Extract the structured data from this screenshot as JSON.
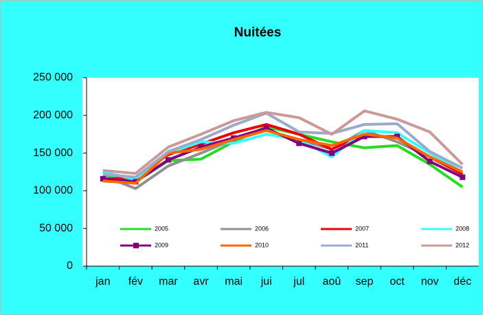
{
  "chart_data": {
    "type": "line",
    "title": "Nuitées",
    "categories": [
      "jan",
      "fév",
      "mar",
      "avr",
      "mai",
      "jui",
      "jul",
      "aoû",
      "sep",
      "oct",
      "nov",
      "déc"
    ],
    "ylim": [
      0,
      250000
    ],
    "yticks": [
      {
        "value": 0,
        "label": "0"
      },
      {
        "value": 50000,
        "label": "50 000"
      },
      {
        "value": 100000,
        "label": "100 000"
      },
      {
        "value": 150000,
        "label": "150 000"
      },
      {
        "value": 200000,
        "label": "200 000"
      },
      {
        "value": 250000,
        "label": "250 000"
      }
    ],
    "grid": true,
    "legend": "bottom",
    "series": [
      {
        "name": "2005",
        "color": "#22dd22",
        "values": [
          120000,
          112000,
          140000,
          142000,
          165000,
          185000,
          175000,
          165000,
          157000,
          160000,
          135000,
          105000
        ]
      },
      {
        "name": "2006",
        "color": "#909090",
        "values": [
          120000,
          103000,
          133000,
          150000,
          168000,
          180000,
          168000,
          155000,
          180000,
          165000,
          145000,
          122000
        ]
      },
      {
        "name": "2007",
        "color": "#ee0000",
        "values": [
          115000,
          118000,
          148000,
          162000,
          177000,
          188000,
          175000,
          155000,
          175000,
          170000,
          145000,
          122000
        ]
      },
      {
        "name": "2008",
        "color": "#33ffff",
        "values": [
          125000,
          115000,
          150000,
          165000,
          163000,
          175000,
          168000,
          145000,
          180000,
          177000,
          150000,
          125000
        ]
      },
      {
        "name": "2009",
        "color": "#800080",
        "marker": "square",
        "values": [
          116000,
          112000,
          141000,
          158000,
          170000,
          183000,
          163000,
          150000,
          172000,
          172000,
          139000,
          118000
        ]
      },
      {
        "name": "2010",
        "color": "#ff6600",
        "values": [
          113000,
          110000,
          150000,
          155000,
          168000,
          180000,
          168000,
          160000,
          175000,
          170000,
          145000,
          125000
        ]
      },
      {
        "name": "2011",
        "color": "#99aacc",
        "values": [
          122000,
          118000,
          152000,
          168000,
          187000,
          203000,
          178000,
          176000,
          188000,
          189000,
          152000,
          130000
        ]
      },
      {
        "name": "2012",
        "color": "#cc9999",
        "values": [
          127000,
          123000,
          158000,
          175000,
          193000,
          204000,
          197000,
          175000,
          206000,
          195000,
          178000,
          135000
        ]
      }
    ]
  }
}
